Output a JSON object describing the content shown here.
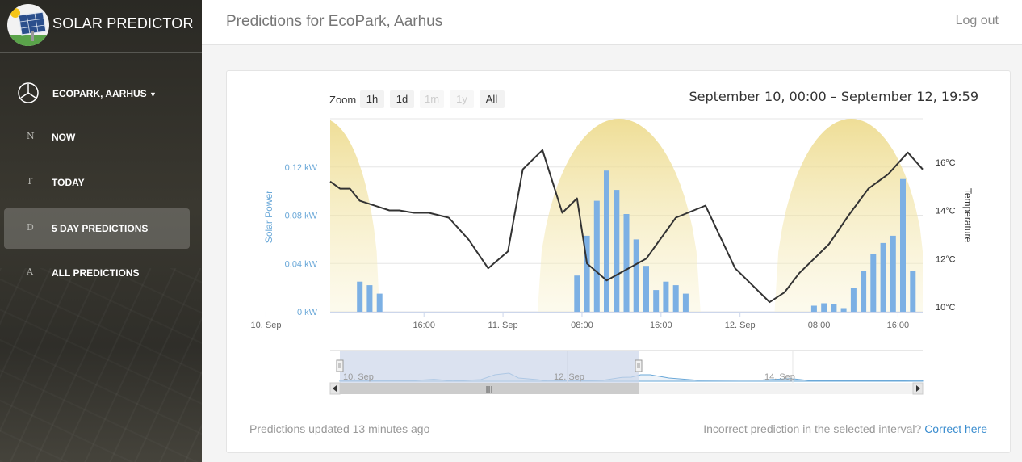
{
  "app": {
    "title": "SOLAR PREDICTOR",
    "logo_icon": "solar-panel-sun-icon"
  },
  "sidebar": {
    "site_selector": {
      "label": "ECOPARK, AARHUS",
      "icon": "clock-icon",
      "caret_icon": "caret-down-icon"
    },
    "items": [
      {
        "letter": "N",
        "label": "NOW",
        "active": false
      },
      {
        "letter": "T",
        "label": "TODAY",
        "active": false
      },
      {
        "letter": "D",
        "label": "5 DAY PREDICTIONS",
        "active": true
      },
      {
        "letter": "A",
        "label": "ALL PREDICTIONS",
        "active": false
      }
    ]
  },
  "header": {
    "title": "Predictions for EcoPark, Aarhus",
    "logout": "Log out"
  },
  "chart": {
    "zoom_label": "Zoom",
    "zoom_buttons": [
      {
        "label": "1h",
        "enabled": true
      },
      {
        "label": "1d",
        "enabled": true
      },
      {
        "label": "1m",
        "enabled": false
      },
      {
        "label": "1y",
        "enabled": false
      },
      {
        "label": "All",
        "enabled": true
      }
    ],
    "range_label": "September 10, 00:00 – September 12, 19:59",
    "navigator_labels": [
      "10. Sep",
      "12. Sep",
      "14. Sep"
    ],
    "scrollbar_grip": "|||"
  },
  "chart_data": {
    "type": "bar",
    "x_axis": {
      "ticks": [
        "10. Sep",
        "16:00",
        "11. Sep",
        "08:00",
        "16:00",
        "12. Sep",
        "08:00",
        "16:00"
      ],
      "tick_hours": [
        0,
        16,
        24,
        32,
        40,
        48,
        56,
        64
      ],
      "range_hours": [
        6.5,
        66.5
      ]
    },
    "y_left": {
      "label": "Solar Power",
      "ticks": [
        "0 kW",
        "0.04 kW",
        "0.08 kW",
        "0.12 kW"
      ],
      "range": [
        0,
        0.16
      ],
      "unit": "kW"
    },
    "y_right": {
      "label": "Temperature",
      "ticks": [
        "10°C",
        "12°C",
        "14°C",
        "16°C"
      ],
      "range": [
        9.8,
        17.8
      ],
      "unit": "°C"
    },
    "grid": true,
    "colors": {
      "bars": "#7cb0e4",
      "temperature": "#333333",
      "daylight": "#eedf8e",
      "axis_label_left": "#6aa8d8",
      "navigator_fill": "#ccd5ea",
      "navigator_line": "#6aa8d8"
    },
    "series": [
      {
        "name": "Solar Power",
        "type": "bar",
        "x_hours": [
          9.5,
          10.5,
          11.5,
          31.5,
          32.5,
          33.5,
          34.5,
          35.5,
          36.5,
          37.5,
          38.5,
          39.5,
          40.5,
          41.5,
          42.5,
          55.5,
          56.5,
          57.5,
          58.5,
          59.5,
          60.5,
          61.5,
          62.5,
          63.5,
          64.5,
          65.5
        ],
        "values": [
          0.025,
          0.022,
          0.015,
          0.03,
          0.063,
          0.092,
          0.117,
          0.101,
          0.081,
          0.06,
          0.038,
          0.018,
          0.025,
          0.022,
          0.015,
          0.005,
          0.007,
          0.006,
          0.003,
          0.02,
          0.034,
          0.048,
          0.057,
          0.063,
          0.11,
          0.034
        ]
      },
      {
        "name": "Temperature",
        "type": "line",
        "x_hours": [
          6.5,
          7.5,
          8.5,
          9.5,
          11,
          12.5,
          13.5,
          15,
          16.5,
          18.5,
          20.5,
          22.5,
          24.5,
          26,
          28,
          30,
          31.5,
          32.5,
          34.5,
          38.5,
          41.5,
          44.5,
          47.5,
          51,
          52.5,
          54,
          55,
          57,
          59,
          61,
          63,
          65,
          66.5
        ],
        "values": [
          15.2,
          14.9,
          14.9,
          14.4,
          14.2,
          14.0,
          14.0,
          13.9,
          13.9,
          13.7,
          12.8,
          11.6,
          12.3,
          15.7,
          16.5,
          13.9,
          14.5,
          11.8,
          11.1,
          12.0,
          13.7,
          14.2,
          11.6,
          10.2,
          10.6,
          11.4,
          11.8,
          12.6,
          13.8,
          14.9,
          15.5,
          16.4,
          15.7
        ]
      }
    ],
    "daylight": {
      "peak_y": 0.16,
      "periods_hours": [
        [
          0,
          11.5
        ],
        [
          27.5,
          44
        ],
        [
          51.5,
          67
        ]
      ]
    }
  },
  "footer": {
    "updated": "Predictions updated 13 minutes ago",
    "correction_question": "Incorrect prediction in the selected interval?",
    "correction_link": "Correct here"
  }
}
